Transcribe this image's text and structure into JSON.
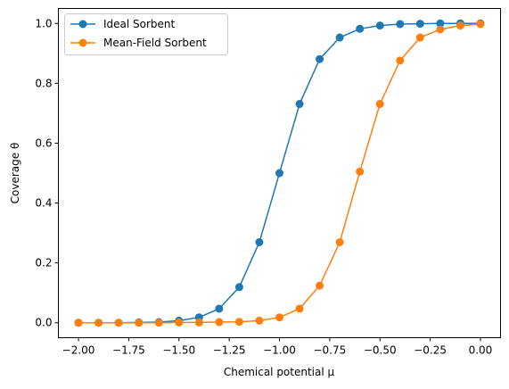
{
  "chart_data": {
    "type": "line",
    "xlabel": "Chemical potential μ",
    "ylabel": "Coverage θ",
    "xlim": [
      -2.1,
      0.1
    ],
    "ylim": [
      -0.05,
      1.05
    ],
    "x_ticks": [
      -2.0,
      -1.75,
      -1.5,
      -1.25,
      -1.0,
      -0.75,
      -0.5,
      -0.25,
      0.0
    ],
    "x_tick_labels": [
      "−2.00",
      "−1.75",
      "−1.50",
      "−1.25",
      "−1.00",
      "−0.75",
      "−0.50",
      "−0.25",
      "0.00"
    ],
    "y_ticks": [
      0.0,
      0.2,
      0.4,
      0.6,
      0.8,
      1.0
    ],
    "y_tick_labels": [
      "0.0",
      "0.2",
      "0.4",
      "0.6",
      "0.8",
      "1.0"
    ],
    "grid": false,
    "legend_position": "top-left",
    "x": [
      -2.0,
      -1.9,
      -1.8,
      -1.7,
      -1.6,
      -1.5,
      -1.4,
      -1.3,
      -1.2,
      -1.1,
      -1.0,
      -0.9,
      -0.8,
      -0.7,
      -0.6,
      -0.5,
      -0.4,
      -0.3,
      -0.2,
      -0.1,
      0.0
    ],
    "series": [
      {
        "name": "Ideal Sorbent",
        "color": "#1f77b4",
        "values": [
          0.0,
          0.0,
          0.0,
          0.001,
          0.002,
          0.007,
          0.018,
          0.047,
          0.119,
          0.269,
          0.5,
          0.731,
          0.881,
          0.953,
          0.982,
          0.993,
          0.998,
          0.999,
          1.0,
          1.0,
          1.0
        ]
      },
      {
        "name": "Mean-Field Sorbent",
        "color": "#ff7f0e",
        "values": [
          0.0,
          0.0,
          0.0,
          0.0,
          0.0,
          0.001,
          0.001,
          0.002,
          0.003,
          0.007,
          0.018,
          0.047,
          0.124,
          0.269,
          0.505,
          0.731,
          0.876,
          0.953,
          0.98,
          0.993,
          0.998
        ]
      }
    ]
  }
}
